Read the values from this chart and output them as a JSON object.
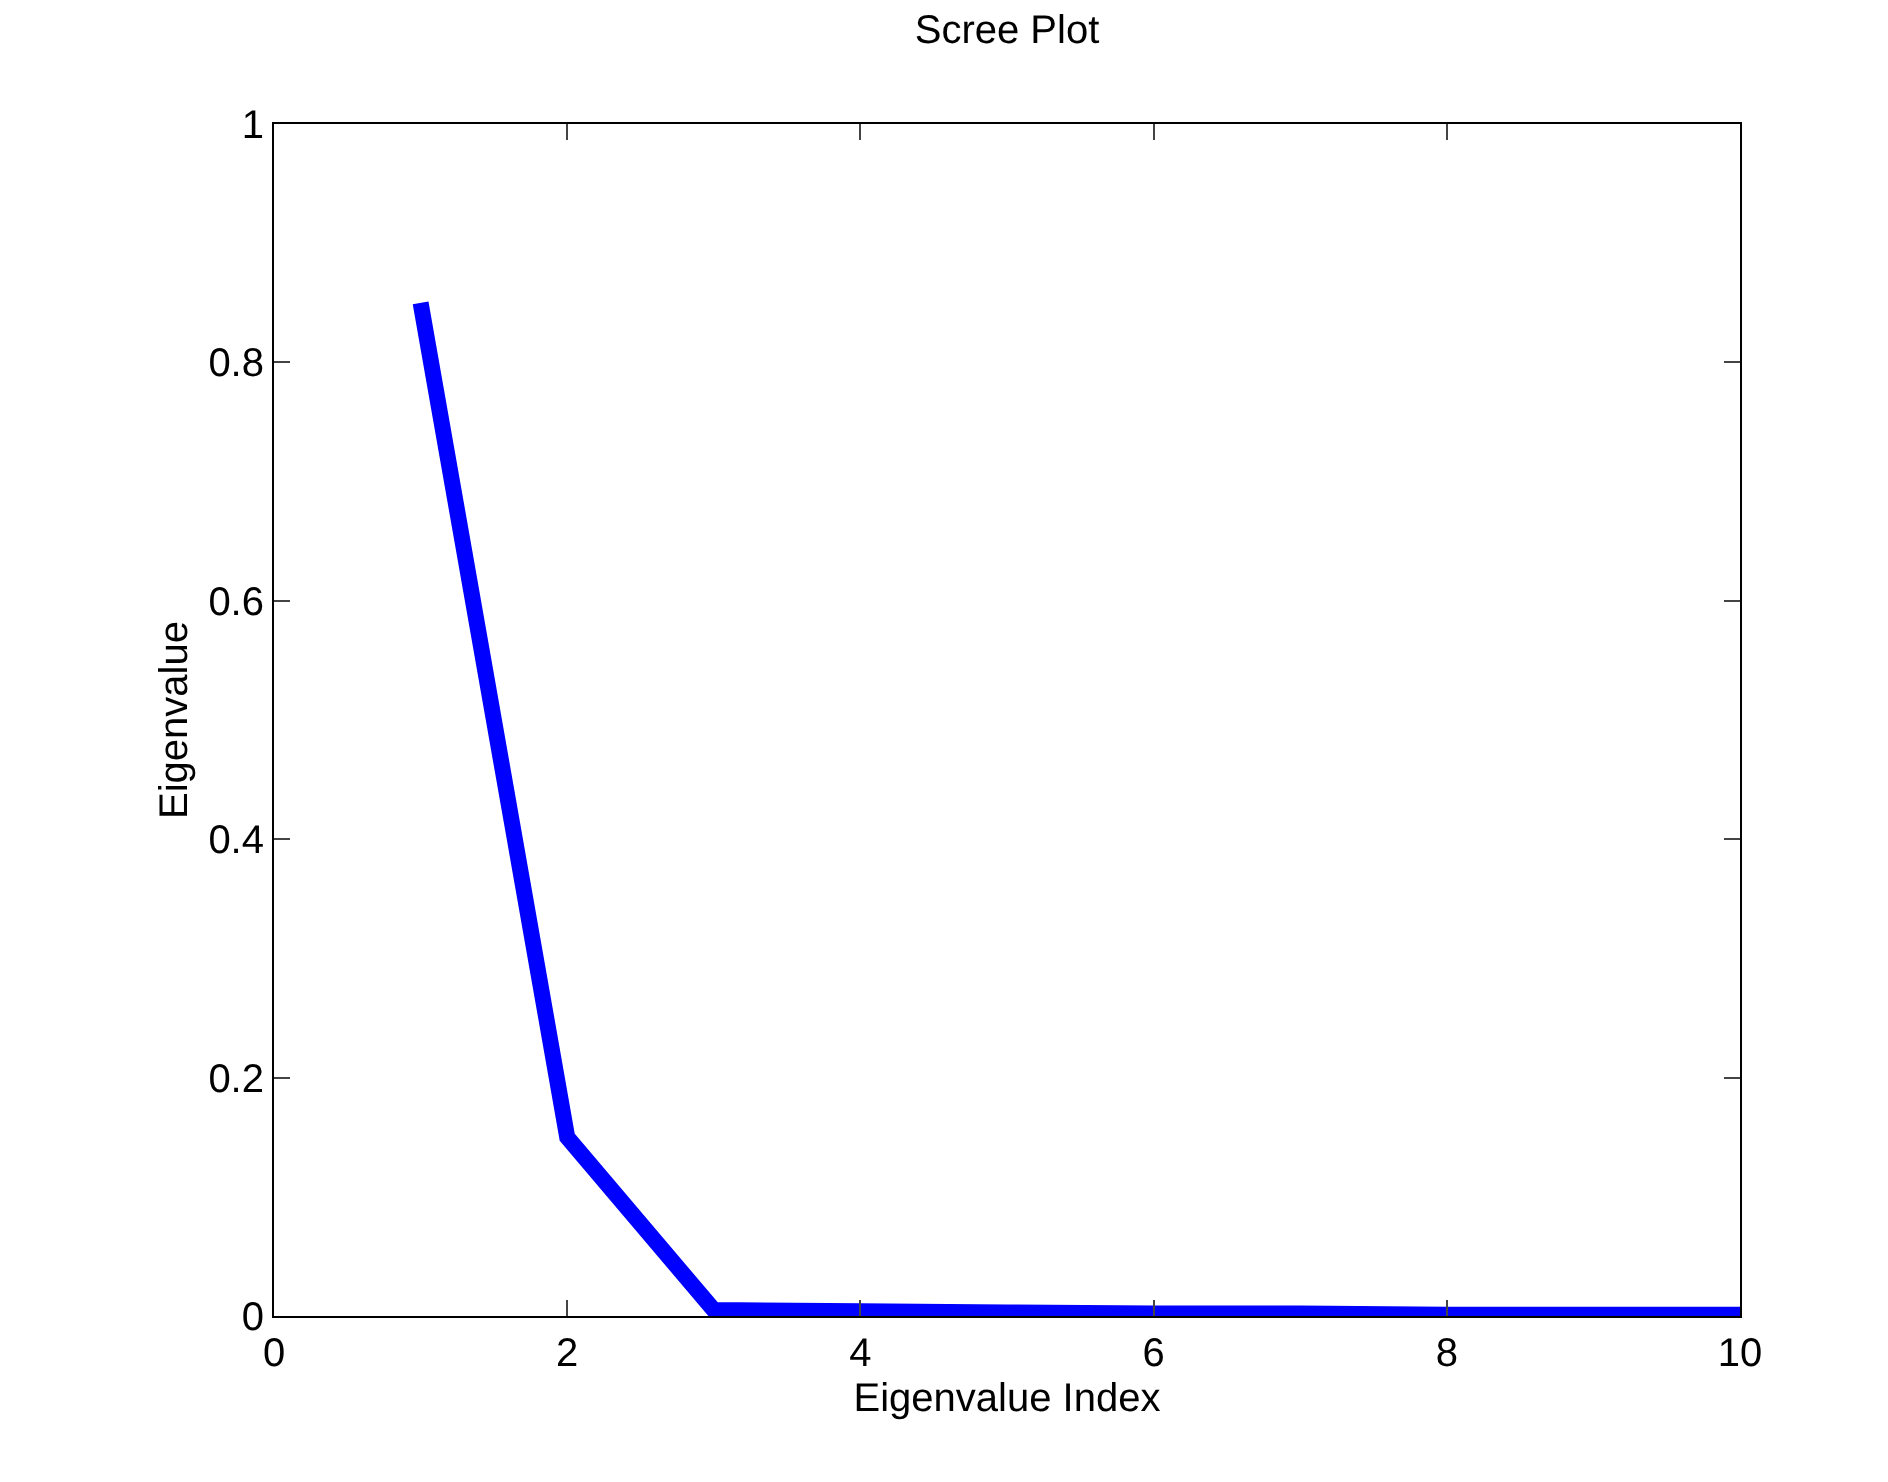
{
  "chart_data": {
    "type": "line",
    "title": "Scree Plot",
    "xlabel": "Eigenvalue Index",
    "ylabel": "Eigenvalue",
    "x": [
      1,
      2,
      3,
      4,
      5,
      6,
      7,
      8,
      9,
      10
    ],
    "series": [
      {
        "color": "#0000ff",
        "values": [
          0.85,
          0.15,
          0.005,
          0.004,
          0.003,
          0.002,
          0.002,
          0.001,
          0.001,
          0.001
        ]
      }
    ],
    "xlim": [
      0,
      10
    ],
    "xticks": [
      0,
      2,
      4,
      6,
      8,
      10
    ],
    "ylim": [
      0,
      1
    ],
    "yticks": [
      0,
      0.2,
      0.4,
      0.6,
      0.8,
      1
    ],
    "grid": false,
    "marker": "none",
    "line_style": "solid"
  }
}
